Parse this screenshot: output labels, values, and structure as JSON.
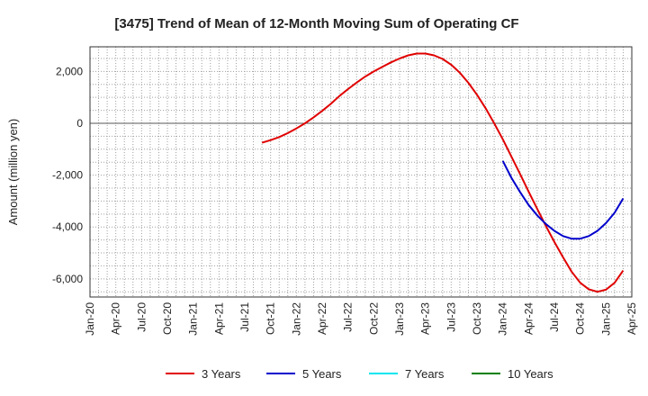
{
  "chart_data": {
    "type": "line",
    "title": "[3475]  Trend of Mean of 12-Month Moving Sum of Operating CF",
    "xlabel": "",
    "ylabel": "Amount (million yen)",
    "ylim": [
      -6700,
      2950
    ],
    "yticks": [
      2000,
      0,
      -2000,
      -4000,
      -6000
    ],
    "ytick_labels": [
      "2,000",
      "0",
      "-2,000",
      "-4,000",
      "-6,000"
    ],
    "x_start": "2020-01",
    "x_end": "2025-04",
    "xticks": [
      "Jan-20",
      "Apr-20",
      "Jul-20",
      "Oct-20",
      "Jan-21",
      "Apr-21",
      "Jul-21",
      "Oct-21",
      "Jan-22",
      "Apr-22",
      "Jul-22",
      "Oct-22",
      "Jan-23",
      "Apr-23",
      "Jul-23",
      "Oct-23",
      "Jan-24",
      "Apr-24",
      "Jul-24",
      "Oct-24",
      "Jan-25",
      "Apr-25"
    ],
    "grid": true,
    "legend_position": "bottom",
    "series": [
      {
        "name": "3 Years",
        "color": "#e00000",
        "points": [
          [
            "2021-09",
            -750
          ],
          [
            "2021-10",
            -650
          ],
          [
            "2021-11",
            -530
          ],
          [
            "2021-12",
            -380
          ],
          [
            "2022-01",
            -200
          ],
          [
            "2022-02",
            0
          ],
          [
            "2022-03",
            230
          ],
          [
            "2022-04",
            480
          ],
          [
            "2022-05",
            750
          ],
          [
            "2022-06",
            1050
          ],
          [
            "2022-07",
            1320
          ],
          [
            "2022-08",
            1570
          ],
          [
            "2022-09",
            1800
          ],
          [
            "2022-10",
            2000
          ],
          [
            "2022-11",
            2180
          ],
          [
            "2022-12",
            2350
          ],
          [
            "2023-01",
            2500
          ],
          [
            "2023-02",
            2620
          ],
          [
            "2023-03",
            2690
          ],
          [
            "2023-04",
            2690
          ],
          [
            "2023-05",
            2620
          ],
          [
            "2023-06",
            2480
          ],
          [
            "2023-07",
            2260
          ],
          [
            "2023-08",
            1950
          ],
          [
            "2023-09",
            1560
          ],
          [
            "2023-10",
            1100
          ],
          [
            "2023-11",
            580
          ],
          [
            "2023-12",
            0
          ],
          [
            "2024-01",
            -620
          ],
          [
            "2024-02",
            -1280
          ],
          [
            "2024-03",
            -1950
          ],
          [
            "2024-04",
            -2630
          ],
          [
            "2024-05",
            -3300
          ],
          [
            "2024-06",
            -3950
          ],
          [
            "2024-07",
            -4580
          ],
          [
            "2024-08",
            -5170
          ],
          [
            "2024-09",
            -5720
          ],
          [
            "2024-10",
            -6150
          ],
          [
            "2024-11",
            -6400
          ],
          [
            "2024-12",
            -6500
          ],
          [
            "2025-01",
            -6420
          ],
          [
            "2025-02",
            -6150
          ],
          [
            "2025-03",
            -5680
          ]
        ]
      },
      {
        "name": "5 Years",
        "color": "#0000cc",
        "points": [
          [
            "2024-01",
            -1450
          ],
          [
            "2024-02",
            -2100
          ],
          [
            "2024-03",
            -2650
          ],
          [
            "2024-04",
            -3150
          ],
          [
            "2024-05",
            -3550
          ],
          [
            "2024-06",
            -3880
          ],
          [
            "2024-07",
            -4150
          ],
          [
            "2024-08",
            -4350
          ],
          [
            "2024-09",
            -4450
          ],
          [
            "2024-10",
            -4450
          ],
          [
            "2024-11",
            -4350
          ],
          [
            "2024-12",
            -4150
          ],
          [
            "2025-01",
            -3850
          ],
          [
            "2025-02",
            -3450
          ],
          [
            "2025-03",
            -2900
          ]
        ]
      },
      {
        "name": "7 Years",
        "color": "#00e5ee",
        "points": []
      },
      {
        "name": "10 Years",
        "color": "#008000",
        "points": []
      }
    ]
  }
}
